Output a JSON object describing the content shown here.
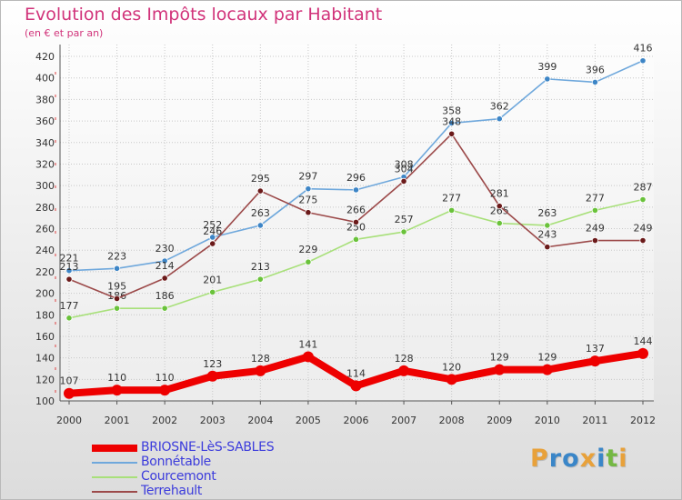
{
  "chart_data": {
    "type": "line",
    "title": "Evolution des Impôts locaux par Habitant",
    "subtitle": "(en € et par an)",
    "xlabel": "",
    "ylabel": "",
    "x": [
      "2000",
      "2001",
      "2002",
      "2003",
      "2004",
      "2005",
      "2006",
      "2007",
      "2008",
      "2009",
      "2010",
      "2011",
      "2012"
    ],
    "ylim": [
      100,
      420
    ],
    "yticks": [
      100,
      120,
      140,
      160,
      180,
      200,
      220,
      240,
      260,
      280,
      300,
      320,
      340,
      360,
      380,
      400,
      420
    ],
    "grid": true,
    "series": [
      {
        "name": "BRIOSNE-LèS-SABLES",
        "color": "#ee0000",
        "values": [
          107,
          110,
          110,
          123,
          128,
          141,
          114,
          128,
          120,
          129,
          129,
          137,
          144
        ]
      },
      {
        "name": "Bonnétable",
        "color": "#6fa8dc",
        "marker": "#3d85c6",
        "values": [
          221,
          223,
          230,
          252,
          263,
          297,
          296,
          308,
          358,
          362,
          399,
          396,
          416
        ]
      },
      {
        "name": "Courcemont",
        "color": "#a8e07a",
        "marker": "#6ac23b",
        "values": [
          177,
          186,
          186,
          201,
          213,
          229,
          250,
          257,
          277,
          265,
          263,
          277,
          287
        ]
      },
      {
        "name": "Terrehault",
        "color": "#9c4a4a",
        "marker": "#6b1a1a",
        "values": [
          213,
          195,
          214,
          246,
          295,
          275,
          266,
          304,
          348,
          281,
          243,
          249,
          249
        ]
      }
    ]
  },
  "logo": {
    "letters": [
      "P",
      "r",
      "o",
      "x",
      "i",
      "t",
      "i"
    ],
    "colors": [
      "#e8a13a",
      "#3a86c8",
      "#3a86c8",
      "#e8a13a",
      "#3a86c8",
      "#74b843",
      "#e8a13a"
    ]
  }
}
